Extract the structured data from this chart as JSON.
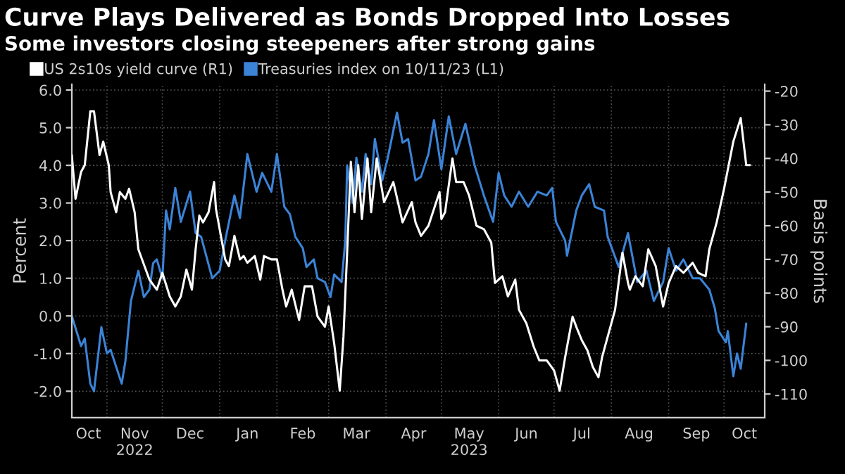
{
  "chart_data": {
    "type": "line",
    "title": "Curve Plays Delivered as Bonds Dropped Into Losses",
    "subtitle": "Some investors closing steepeners after strong gains",
    "ylabel": "Percent",
    "y2label": "Basis points",
    "xlim": [
      "2022-10-13",
      "2023-10-23"
    ],
    "xticks": [
      {
        "value": "2022-10-22",
        "label": "Oct"
      },
      {
        "value": "2022-11-01",
        "label": null
      },
      {
        "value": "2022-11-16",
        "label": "Nov\n2022"
      },
      {
        "value": "2022-12-01",
        "label": null
      },
      {
        "value": "2022-12-16",
        "label": "Dec"
      },
      {
        "value": "2023-01-01",
        "label": null
      },
      {
        "value": "2023-01-16",
        "label": "Jan"
      },
      {
        "value": "2023-02-01",
        "label": null
      },
      {
        "value": "2023-02-15",
        "label": "Feb"
      },
      {
        "value": "2023-03-01",
        "label": null
      },
      {
        "value": "2023-03-16",
        "label": "Mar"
      },
      {
        "value": "2023-04-01",
        "label": null
      },
      {
        "value": "2023-04-16",
        "label": "Apr"
      },
      {
        "value": "2023-05-01",
        "label": null
      },
      {
        "value": "2023-05-16",
        "label": "May\n2023"
      },
      {
        "value": "2023-06-01",
        "label": null
      },
      {
        "value": "2023-06-16",
        "label": "Jun"
      },
      {
        "value": "2023-07-01",
        "label": null
      },
      {
        "value": "2023-07-16",
        "label": "Jul"
      },
      {
        "value": "2023-08-01",
        "label": null
      },
      {
        "value": "2023-08-16",
        "label": "Aug"
      },
      {
        "value": "2023-09-01",
        "label": null
      },
      {
        "value": "2023-09-16",
        "label": "Sep"
      },
      {
        "value": "2023-10-01",
        "label": null
      },
      {
        "value": "2023-10-12",
        "label": "Oct"
      }
    ],
    "ylim": [
      -2.7,
      6.15
    ],
    "yticks": [
      {
        "value": -2,
        "label": "-2.0"
      },
      {
        "value": -1,
        "label": "-1.0"
      },
      {
        "value": 0,
        "label": "0.0"
      },
      {
        "value": 1,
        "label": "1.0"
      },
      {
        "value": 2,
        "label": "2.0"
      },
      {
        "value": 3,
        "label": "3.0"
      },
      {
        "value": 4,
        "label": "4.0"
      },
      {
        "value": 5,
        "label": "5.0"
      },
      {
        "value": 6,
        "label": "6.0"
      }
    ],
    "y2lim": [
      -117,
      -18
    ],
    "y2ticks": [
      -110,
      -100,
      -90,
      -80,
      -70,
      -60,
      -50,
      -40,
      -30,
      -20
    ],
    "grid": true,
    "legend": "top left",
    "line_style": "solid",
    "marker": "none",
    "series": [
      {
        "name": "US 2s10s yield curve (R1)",
        "color": "#ffffff",
        "axis": "y2",
        "x": [
          "2022-10-13",
          "2022-10-15",
          "2022-10-18",
          "2022-10-20",
          "2022-10-23",
          "2022-10-25",
          "2022-10-28",
          "2022-10-30",
          "2022-11-02",
          "2022-11-03",
          "2022-11-06",
          "2022-11-08",
          "2022-11-11",
          "2022-11-13",
          "2022-11-16",
          "2022-11-18",
          "2022-11-24",
          "2022-11-28",
          "2022-12-01",
          "2022-12-05",
          "2022-12-08",
          "2022-12-11",
          "2022-12-14",
          "2022-12-17",
          "2022-12-19",
          "2022-12-21",
          "2022-12-23",
          "2022-12-26",
          "2022-12-29",
          "2022-12-30",
          "2023-01-04",
          "2023-01-06",
          "2023-01-09",
          "2023-01-12",
          "2023-01-14",
          "2023-01-16",
          "2023-01-20",
          "2023-01-23",
          "2023-01-25",
          "2023-01-29",
          "2023-02-01",
          "2023-02-04",
          "2023-02-06",
          "2023-02-09",
          "2023-02-13",
          "2023-02-16",
          "2023-02-20",
          "2023-02-23",
          "2023-02-27",
          "2023-03-01",
          "2023-03-04",
          "2023-03-07",
          "2023-03-09",
          "2023-03-11",
          "2023-03-13",
          "2023-03-15",
          "2023-03-17",
          "2023-03-19",
          "2023-03-22",
          "2023-03-24",
          "2023-03-27",
          "2023-03-31",
          "2023-04-05",
          "2023-04-10",
          "2023-04-15",
          "2023-04-17",
          "2023-04-20",
          "2023-04-24",
          "2023-04-30",
          "2023-05-01",
          "2023-05-03",
          "2023-05-07",
          "2023-05-09",
          "2023-05-13",
          "2023-05-16",
          "2023-05-20",
          "2023-05-24",
          "2023-05-28",
          "2023-05-30",
          "2023-06-03",
          "2023-06-06",
          "2023-06-10",
          "2023-06-12",
          "2023-06-16",
          "2023-06-20",
          "2023-06-23",
          "2023-06-27",
          "2023-07-01",
          "2023-07-04",
          "2023-07-07",
          "2023-07-11",
          "2023-07-13",
          "2023-07-16",
          "2023-07-19",
          "2023-07-22",
          "2023-07-25",
          "2023-07-27",
          "2023-07-30",
          "2023-08-03",
          "2023-08-07",
          "2023-08-10",
          "2023-08-11",
          "2023-08-14",
          "2023-08-18",
          "2023-08-21",
          "2023-08-25",
          "2023-08-29",
          "2023-09-01",
          "2023-09-05",
          "2023-09-09",
          "2023-09-14",
          "2023-09-17",
          "2023-09-21",
          "2023-09-23",
          "2023-09-27",
          "2023-10-01",
          "2023-10-06",
          "2023-10-10",
          "2023-10-13",
          "2023-10-15"
        ],
        "values": [
          -39,
          -52,
          -44,
          -42,
          -26,
          -26,
          -39,
          -35,
          -42,
          -50,
          -56,
          -50,
          -52,
          -49,
          -56,
          -67,
          -76,
          -79,
          -74,
          -81,
          -84,
          -81,
          -73,
          -79,
          -67,
          -57,
          -59,
          -56,
          -47,
          -55,
          -70,
          -72,
          -63,
          -70,
          -69,
          -71,
          -69,
          -76,
          -69,
          -70,
          -70,
          -79,
          -84,
          -79,
          -88,
          -78,
          -78,
          -87,
          -90,
          -84,
          -95,
          -109,
          -93,
          -68,
          -41,
          -56,
          -42,
          -58,
          -40,
          -56,
          -40,
          -53,
          -47,
          -59,
          -53,
          -59,
          -63,
          -60,
          -50,
          -58,
          -56,
          -40,
          -47,
          -47,
          -51,
          -60,
          -61,
          -65,
          -77,
          -75,
          -81,
          -76,
          -85,
          -89,
          -96,
          -100,
          -100,
          -103,
          -109,
          -99,
          -87,
          -90,
          -94,
          -97,
          -102,
          -105,
          -99,
          -93,
          -85,
          -68,
          -77,
          -79,
          -75,
          -78,
          -67,
          -72,
          -84,
          -77,
          -72,
          -74,
          -71,
          -74,
          -75,
          -67,
          -59,
          -49,
          -35,
          -28,
          -42,
          -42
        ]
      },
      {
        "name": "Treasuries index on 10/11/23 (L1)",
        "color": "#3b83d6",
        "x": [
          "2022-10-13",
          "2022-10-18",
          "2022-10-20",
          "2022-10-23",
          "2022-10-25",
          "2022-10-29",
          "2022-11-01",
          "2022-11-03",
          "2022-11-09",
          "2022-11-11",
          "2022-11-14",
          "2022-11-18",
          "2022-11-21",
          "2022-11-24",
          "2022-11-26",
          "2022-11-28",
          "2022-12-01",
          "2022-12-03",
          "2022-12-05",
          "2022-12-08",
          "2022-12-11",
          "2022-12-16",
          "2022-12-19",
          "2022-12-22",
          "2022-12-28",
          "2023-01-01",
          "2023-01-04",
          "2023-01-09",
          "2023-01-12",
          "2023-01-16",
          "2023-01-21",
          "2023-01-24",
          "2023-01-29",
          "2023-02-01",
          "2023-02-05",
          "2023-02-08",
          "2023-02-11",
          "2023-02-15",
          "2023-02-17",
          "2023-02-21",
          "2023-02-23",
          "2023-02-27",
          "2023-03-02",
          "2023-03-04",
          "2023-03-08",
          "2023-03-10",
          "2023-03-11",
          "2023-03-14",
          "2023-03-16",
          "2023-03-19",
          "2023-03-21",
          "2023-03-24",
          "2023-03-26",
          "2023-03-30",
          "2023-04-02",
          "2023-04-07",
          "2023-04-10",
          "2023-04-13",
          "2023-04-17",
          "2023-04-20",
          "2023-04-24",
          "2023-04-27",
          "2023-05-01",
          "2023-05-05",
          "2023-05-09",
          "2023-05-14",
          "2023-05-19",
          "2023-05-24",
          "2023-05-29",
          "2023-06-01",
          "2023-06-04",
          "2023-06-08",
          "2023-06-12",
          "2023-06-17",
          "2023-06-22",
          "2023-06-27",
          "2023-06-30",
          "2023-07-02",
          "2023-07-07",
          "2023-07-08",
          "2023-07-13",
          "2023-07-16",
          "2023-07-20",
          "2023-07-23",
          "2023-07-28",
          "2023-07-30",
          "2023-08-05",
          "2023-08-10",
          "2023-08-15",
          "2023-08-20",
          "2023-08-24",
          "2023-08-29",
          "2023-09-01",
          "2023-09-05",
          "2023-09-09",
          "2023-09-14",
          "2023-09-18",
          "2023-09-23",
          "2023-09-26",
          "2023-09-28",
          "2023-10-02",
          "2023-10-03",
          "2023-10-06",
          "2023-10-08",
          "2023-10-10",
          "2023-10-13"
        ],
        "values": [
          0.0,
          -0.8,
          -0.6,
          -1.8,
          -2.0,
          -0.3,
          -1.0,
          -0.9,
          -1.8,
          -1.2,
          0.4,
          1.2,
          0.5,
          0.7,
          1.4,
          1.5,
          1.0,
          2.8,
          2.3,
          3.4,
          2.5,
          3.3,
          2.2,
          2.1,
          1.0,
          1.2,
          2.0,
          3.2,
          2.6,
          4.3,
          3.3,
          3.8,
          3.3,
          4.3,
          2.9,
          2.7,
          2.1,
          1.8,
          1.3,
          1.5,
          1.0,
          0.9,
          0.5,
          1.1,
          0.9,
          2.0,
          4.0,
          3.0,
          4.2,
          3.3,
          4.3,
          3.5,
          4.7,
          3.6,
          4.2,
          5.4,
          4.6,
          4.7,
          3.6,
          3.7,
          4.3,
          5.2,
          3.9,
          5.3,
          4.3,
          5.1,
          4.0,
          3.2,
          2.5,
          3.8,
          3.2,
          2.9,
          3.3,
          2.9,
          3.3,
          3.2,
          3.4,
          2.5,
          2.0,
          1.6,
          2.8,
          3.2,
          3.5,
          2.9,
          2.8,
          2.1,
          1.3,
          2.2,
          0.9,
          1.2,
          0.4,
          0.9,
          1.8,
          1.2,
          1.5,
          1.0,
          1.0,
          0.7,
          0.2,
          -0.4,
          -0.7,
          -0.4,
          -1.6,
          -1.0,
          -1.4,
          -0.2
        ]
      }
    ]
  }
}
